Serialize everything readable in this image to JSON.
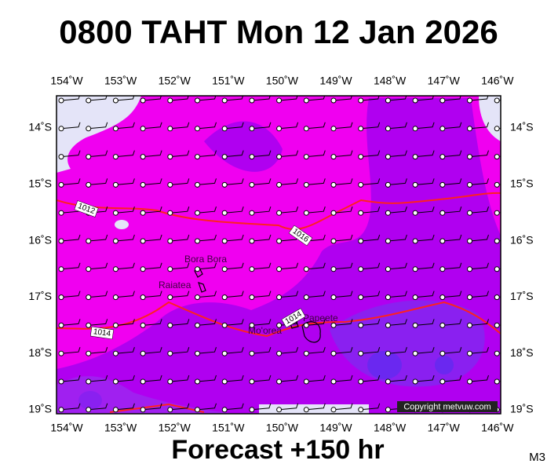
{
  "header": {
    "title": "0800 TAHT Mon 12 Jan 2026"
  },
  "map": {
    "lon_labels": [
      "154˚W",
      "153˚W",
      "152˚W",
      "151˚W",
      "150˚W",
      "149˚W",
      "148˚W",
      "147˚W",
      "146˚W"
    ],
    "lat_labels": [
      "14˚S",
      "15˚S",
      "16˚S",
      "17˚S",
      "18˚S",
      "19˚S"
    ],
    "places": [
      {
        "label": "Bora Bora"
      },
      {
        "label": "Raiatea"
      },
      {
        "label": "Mo'orea"
      },
      {
        "label": "Papeete"
      }
    ],
    "isobar_labels": [
      "1012",
      "1016",
      "1014",
      "1014"
    ],
    "copyright": "Copyright metvuw.com"
  },
  "footer": {
    "forecast": "Forecast +150 hr",
    "code": "M3"
  }
}
